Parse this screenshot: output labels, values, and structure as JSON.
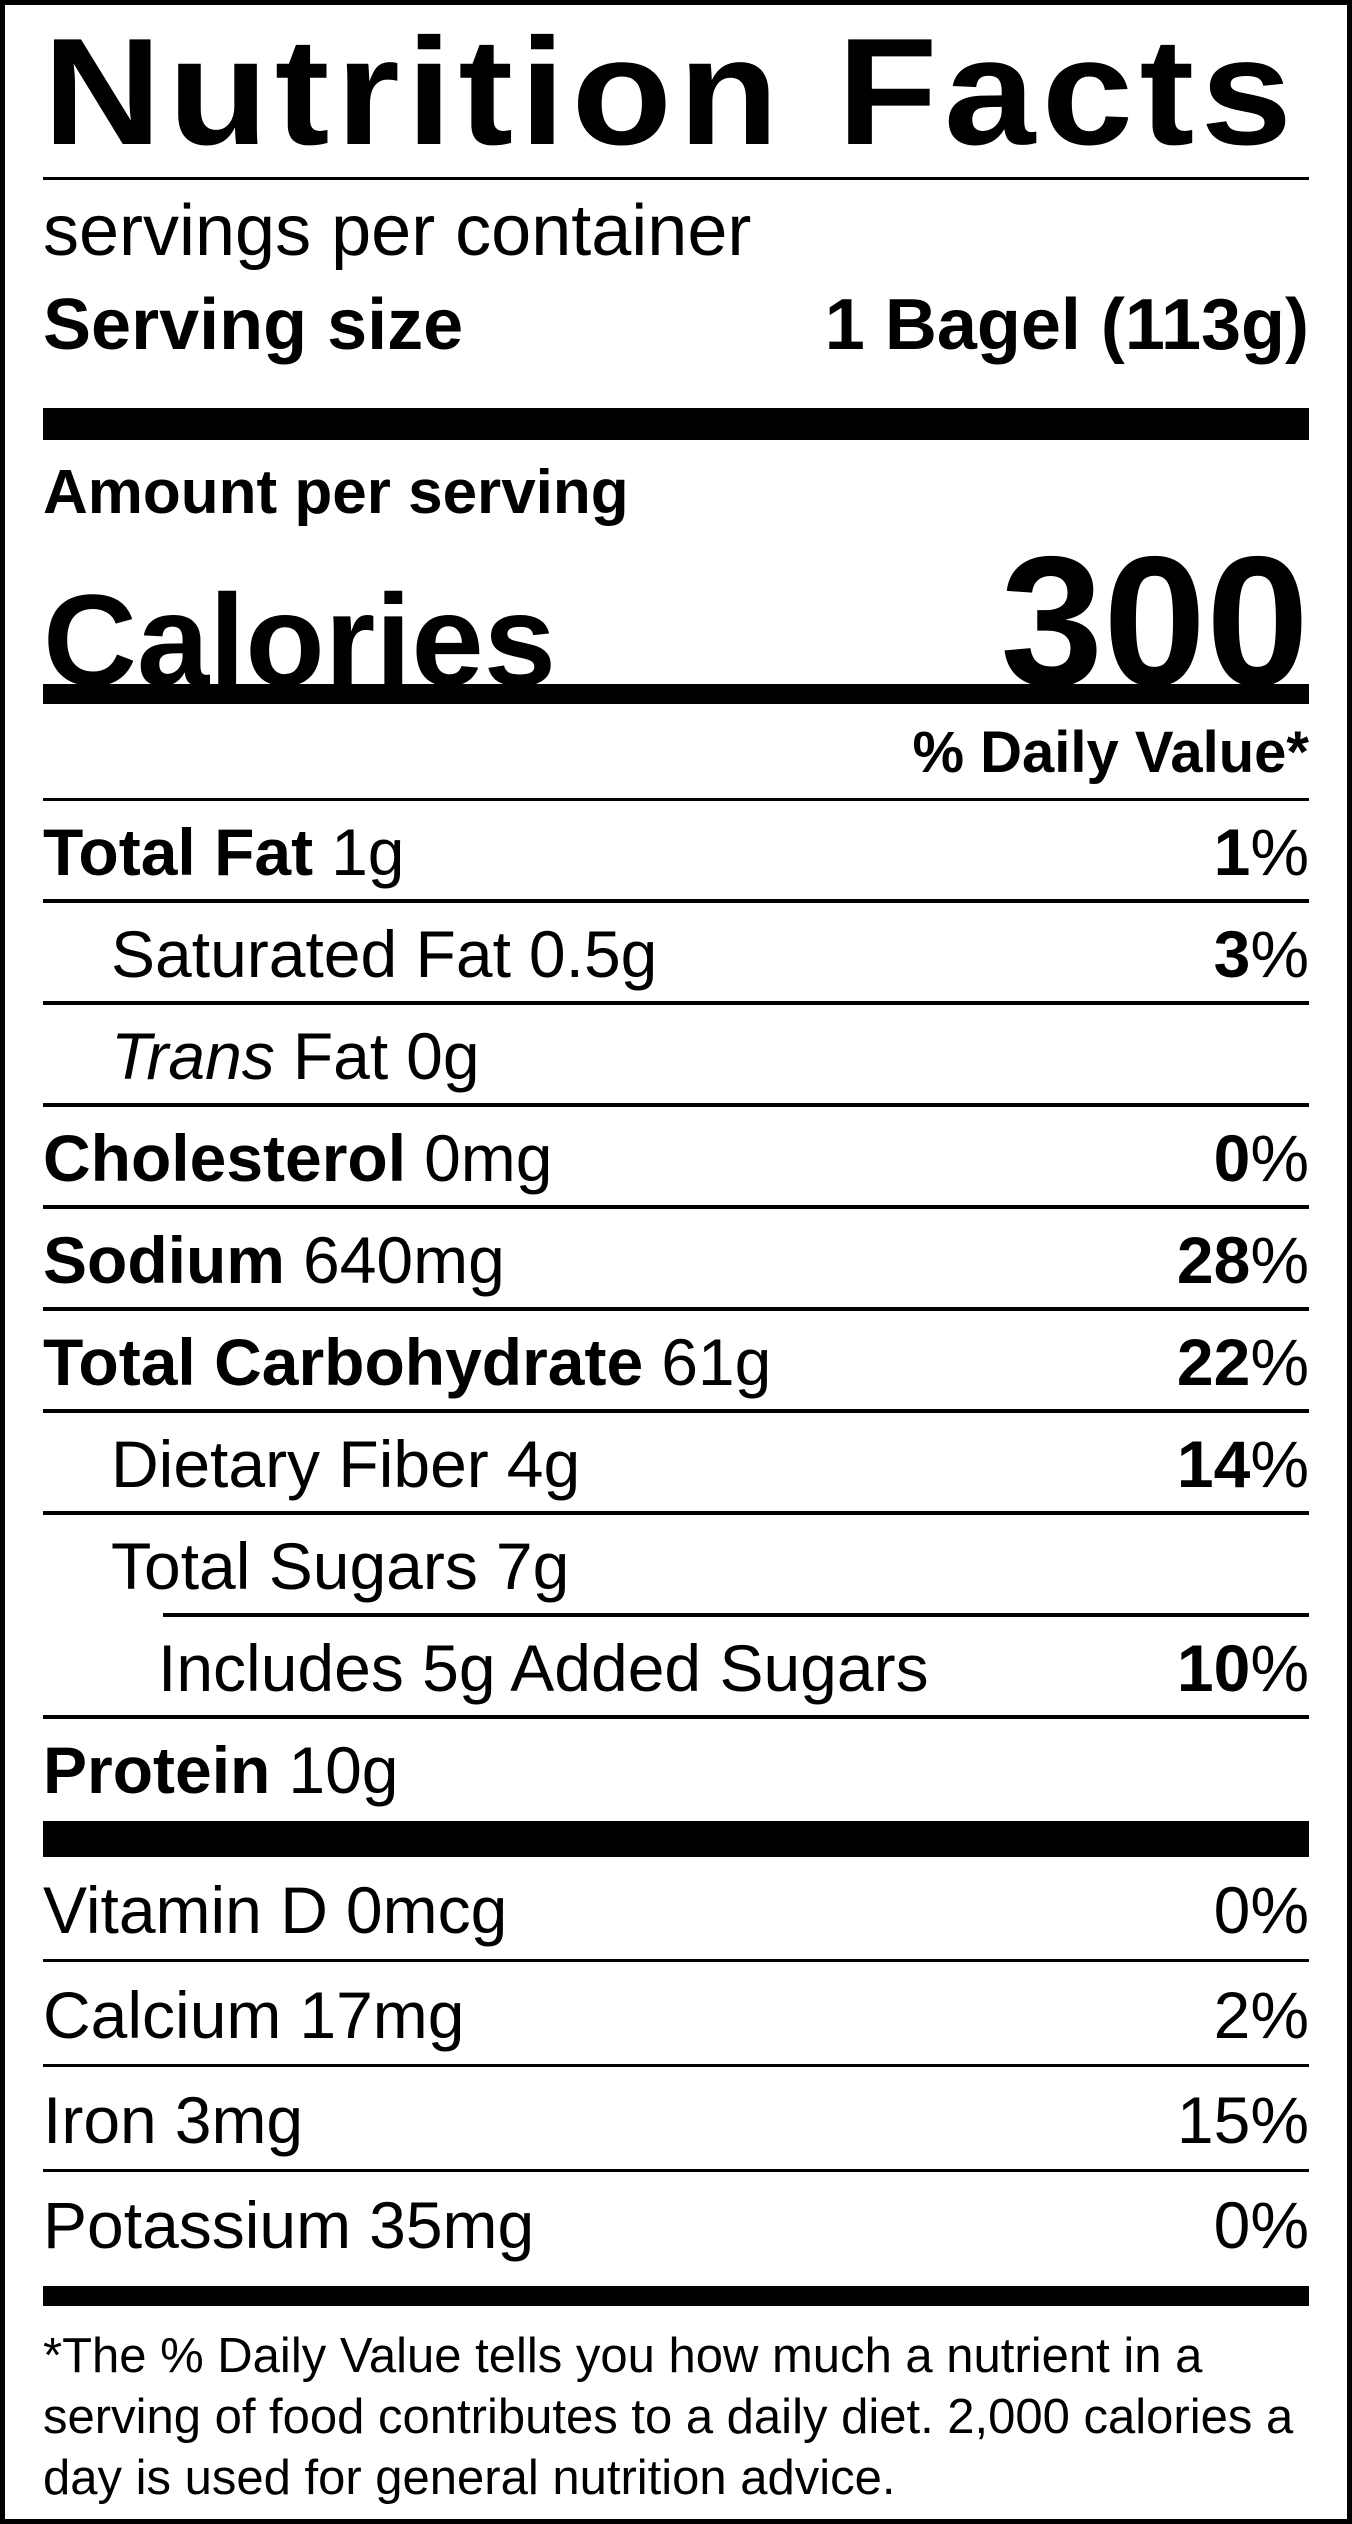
{
  "title": "Nutrition Facts",
  "servings_line": "servings per container",
  "serving_size": {
    "label": "Serving size",
    "value": "1 Bagel (113g)"
  },
  "calories": {
    "eyebrow": "Amount per serving",
    "label": "Calories",
    "value": "300"
  },
  "daily_value_header": "% Daily Value*",
  "nutrients": [
    {
      "name": "Total Fat",
      "amount": "1g",
      "dv": "1",
      "pct": "%"
    },
    {
      "name": "Saturated Fat",
      "amount": "0.5g",
      "dv": "3",
      "pct": "%"
    },
    {
      "name_italic": "Trans",
      "name": "Fat",
      "amount": "0g",
      "dv": "",
      "pct": ""
    },
    {
      "name": "Cholesterol",
      "amount": "0mg",
      "dv": "0",
      "pct": "%"
    },
    {
      "name": "Sodium",
      "amount": "640mg",
      "dv": "28",
      "pct": "%"
    },
    {
      "name": "Total Carbohydrate",
      "amount": "61g",
      "dv": "22",
      "pct": "%"
    },
    {
      "name": "Dietary Fiber",
      "amount": "4g",
      "dv": "14",
      "pct": "%"
    },
    {
      "name": "Total Sugars",
      "amount": "7g",
      "dv": "",
      "pct": ""
    },
    {
      "name": "Includes 5g Added Sugars",
      "amount": "",
      "dv": "10",
      "pct": "%"
    },
    {
      "name": "Protein",
      "amount": "10g",
      "dv": "",
      "pct": ""
    }
  ],
  "vitamins": [
    {
      "name": "Vitamin D",
      "amount": "0mcg",
      "dv": "0",
      "pct": "%"
    },
    {
      "name": "Calcium",
      "amount": "17mg",
      "dv": "2",
      "pct": "%"
    },
    {
      "name": "Iron",
      "amount": "3mg",
      "dv": "15",
      "pct": "%"
    },
    {
      "name": "Potassium",
      "amount": "35mg",
      "dv": "0",
      "pct": "%"
    }
  ],
  "footnote_lines": [
    "*The % Daily Value tells you how much a nutrient in a",
    "serving of food contributes to a daily diet. 2,000 calories a",
    "day is used for general nutrition advice."
  ]
}
